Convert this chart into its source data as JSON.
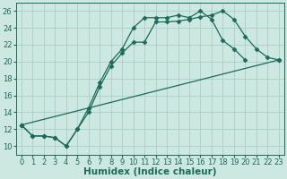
{
  "background_color": "#cce8e0",
  "grid_color": "#aacfc8",
  "line_color": "#1a6b5a",
  "marker": "D",
  "markersize": 2.5,
  "linewidth": 0.9,
  "xlabel": "Humidex (Indice chaleur)",
  "xlabel_fontsize": 7.5,
  "tick_fontsize": 6,
  "xlim": [
    -0.5,
    23.5
  ],
  "ylim": [
    9,
    27
  ],
  "yticks": [
    10,
    12,
    14,
    16,
    18,
    20,
    22,
    24,
    26
  ],
  "xticks": [
    0,
    1,
    2,
    3,
    4,
    5,
    6,
    7,
    8,
    9,
    10,
    11,
    12,
    13,
    14,
    15,
    16,
    17,
    18,
    19,
    20,
    21,
    22,
    23
  ],
  "series": [
    {
      "x": [
        0,
        1,
        2,
        3,
        4,
        5,
        6,
        7,
        8,
        9,
        10,
        11,
        12,
        13,
        14,
        15,
        16,
        17,
        18,
        19,
        20,
        21,
        22,
        23
      ],
      "y": [
        12.5,
        11.2,
        11.2,
        11.0,
        10.0,
        12.0,
        14.0,
        17.0,
        19.5,
        21.0,
        22.3,
        22.3,
        24.7,
        24.7,
        24.8,
        25.0,
        25.3,
        25.5,
        26.0,
        25.0,
        23.0,
        21.5,
        20.5,
        20.2
      ]
    },
    {
      "x": [
        0,
        1,
        2,
        3,
        4,
        5,
        6,
        7,
        8,
        9,
        10,
        11,
        12,
        13,
        14,
        15,
        16,
        17,
        18,
        19,
        20
      ],
      "y": [
        12.5,
        11.2,
        11.2,
        11.0,
        10.0,
        12.0,
        14.5,
        17.5,
        20.0,
        21.5,
        24.0,
        25.2,
        25.2,
        25.2,
        25.5,
        25.2,
        26.0,
        25.0,
        22.5,
        21.5,
        20.2
      ]
    },
    {
      "x": [
        0,
        23
      ],
      "y": [
        12.5,
        20.2
      ]
    }
  ]
}
